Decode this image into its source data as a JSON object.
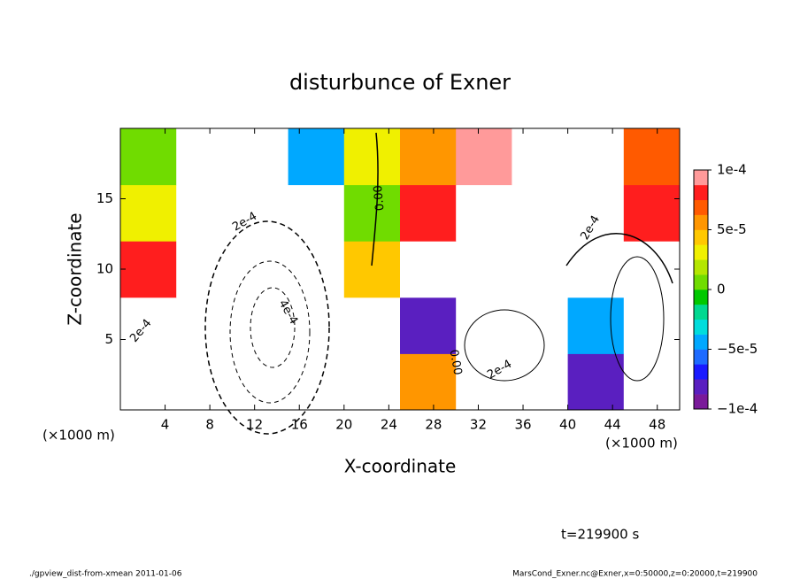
{
  "chart_data": {
    "type": "heatmap",
    "title": "disturbunce of Exner",
    "x_label": "X-coordinate",
    "y_label": "Z-coordinate",
    "x_unit": "(×1000 m)",
    "x_unit_right": "(×1000 m)",
    "time_label": "t=219900 s",
    "footer_left": "./gpview_dist-from-xmean  2011-01-06",
    "footer_right": "MarsCond_Exner.nc@Exner,x=0:50000,z=0:20000,t=219900",
    "contour_labels": [
      "2e-4",
      "4e-4",
      "0.00",
      "2e-4",
      "2e-4",
      "0.00",
      "2e-4"
    ],
    "xlim": [
      0,
      50
    ],
    "xticks": [
      4,
      8,
      12,
      16,
      20,
      24,
      28,
      32,
      36,
      40,
      44,
      48
    ],
    "ylim": [
      0,
      20
    ],
    "yticks": [
      5,
      10,
      15
    ],
    "x": [
      2.5,
      7.5,
      12.5,
      17.5,
      22.5,
      27.5,
      32.5,
      37.5,
      42.5,
      47.5
    ],
    "y": [
      2,
      6,
      10,
      14,
      18
    ],
    "z": [
      [
        0.0002,
        0.0002,
        -0.0004,
        -0.0002,
        0.0003,
        5e-05,
        0.0002,
        0.0002,
        -8e-05,
        0.0002
      ],
      [
        0.0002,
        -0.0002,
        -0.0005,
        -0.0003,
        0.0002,
        -8e-05,
        0.0002,
        0.0002,
        -5e-05,
        0.0002
      ],
      [
        8e-05,
        -0.0002,
        -0.0004,
        -0.0002,
        4e-05,
        0.0002,
        0.0002,
        0.0002,
        0.0002,
        0.0002
      ],
      [
        3e-05,
        -0.0002,
        -0.0003,
        -0.0002,
        1e-05,
        8e-05,
        0.0002,
        0.0003,
        0.0003,
        8e-05
      ],
      [
        1e-05,
        -0.0002,
        -0.0003,
        -4e-05,
        3e-05,
        6e-05,
        9e-05,
        0.0002,
        0.0003,
        7e-05
      ]
    ],
    "clim": [
      -0.0001,
      0.0001
    ],
    "cticks": [
      {
        "value": -0.0001,
        "label": "−1e-4"
      },
      {
        "value": -5e-05,
        "label": "−5e-5"
      },
      0,
      {
        "value": 5e-05,
        "label": "5e-5"
      },
      {
        "value": 0.0001,
        "label": "1e-4"
      }
    ],
    "colors": [
      "#7a1a9a",
      "#5a1fc0",
      "#1a1aff",
      "#1e6bff",
      "#00a8ff",
      "#00dcdc",
      "#00d890",
      "#00c800",
      "#70dc00",
      "#b4e600",
      "#f0f000",
      "#ffc800",
      "#ff9600",
      "#ff5a00",
      "#ff1e1e",
      "#ff9a9a"
    ],
    "out_of_range_color": "#ffffff"
  }
}
